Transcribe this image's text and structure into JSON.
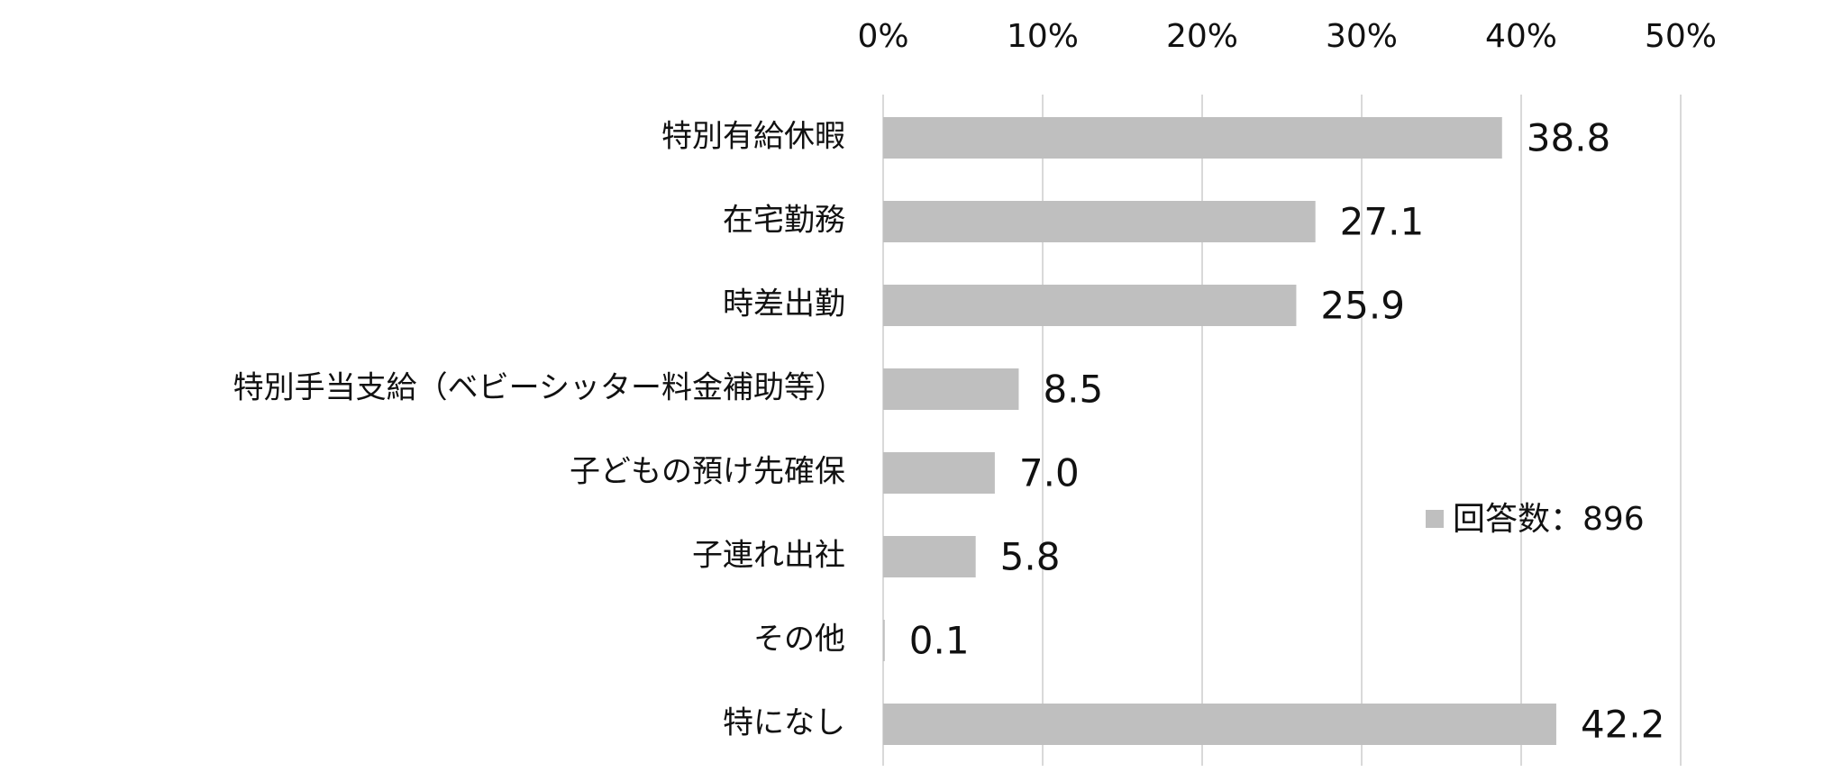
{
  "chart_data": {
    "type": "bar",
    "orientation": "horizontal",
    "categories": [
      "特別有給休暇",
      "在宅勤務",
      "時差出勤",
      "特別手当支給（ベビーシッター料金補助等）",
      "子どもの預け先確保",
      "子連れ出社",
      "その他",
      "特になし"
    ],
    "series": [
      {
        "name": "回答数：896",
        "values": [
          38.8,
          27.1,
          25.9,
          8.5,
          7.0,
          5.8,
          0.1,
          42.2
        ],
        "color": "#bfbfbf"
      }
    ],
    "data_labels": [
      "38.8",
      "27.1",
      "25.9",
      "8.5",
      "7.0",
      "5.8",
      "0.1",
      "42.2"
    ],
    "x_ticks": [
      0,
      10,
      20,
      30,
      40,
      50
    ],
    "x_tick_labels": [
      "0%",
      "10%",
      "20%",
      "30%",
      "40%",
      "50%"
    ],
    "xlim": [
      0,
      50
    ],
    "xaxis_position": "top",
    "grid": true,
    "grid_color": "#d9d9d9",
    "legend_position": "right-inside",
    "title": "",
    "xlabel": "",
    "ylabel": ""
  }
}
